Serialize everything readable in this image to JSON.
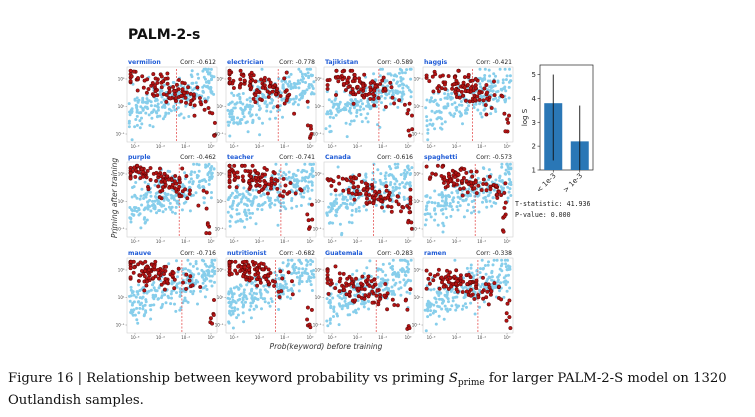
{
  "figure": {
    "title": "PALM-2-s",
    "xlabel": "Prob(keyword) before training",
    "ylabel": "Priming after training",
    "caption_prefix": "Figure 16 | Relationship between keyword probability vs priming ",
    "caption_symbol": "S",
    "caption_subscript": "prime",
    "caption_suffix": " for larger PALM-2-S model on 1320 Outlandish samples."
  },
  "chart_data": [
    {
      "type": "scatter",
      "panels": [
        {
          "keyword": "vermilion",
          "corr": "Corr: -0.612"
        },
        {
          "keyword": "electrician",
          "corr": "Corr: -0.778"
        },
        {
          "keyword": "Tajikistan",
          "corr": "Corr: -0.589"
        },
        {
          "keyword": "haggis",
          "corr": "Corr: -0.421"
        },
        {
          "keyword": "purple",
          "corr": "Corr: -0.462"
        },
        {
          "keyword": "teacher",
          "corr": "Corr: -0.741"
        },
        {
          "keyword": "Canada",
          "corr": "Corr: -0.616"
        },
        {
          "keyword": "spaghetti",
          "corr": "Corr: -0.573"
        },
        {
          "keyword": "mauve",
          "corr": "Corr: -0.716"
        },
        {
          "keyword": "nutritionist",
          "corr": "Corr: -0.682"
        },
        {
          "keyword": "Guatemala",
          "corr": "Corr: -0.283"
        },
        {
          "keyword": "ramen",
          "corr": "Corr: -0.338"
        }
      ],
      "xscale": "log",
      "yscale": "log",
      "x_ticks": [
        "10⁻⁶",
        "10⁻⁴",
        "10⁻²",
        "10⁰"
      ],
      "y_ticks": [
        "10⁻¹",
        "10¹",
        "10³"
      ],
      "threshold": 0.001,
      "colors": {
        "background_points": "#87ceeb",
        "sample_points": "#b31313",
        "sample_edge": "#300000",
        "threshold_line": "#e23b3b"
      }
    },
    {
      "type": "bar",
      "categories": [
        "< 1e-3",
        "> 1e-3"
      ],
      "values": [
        3.8,
        2.2
      ],
      "error_low": [
        1.4,
        0.8
      ],
      "error_high": [
        5.0,
        3.7
      ],
      "ylabel": "log S",
      "ylim": [
        1,
        5.4
      ],
      "y_ticks": [
        1,
        2,
        3,
        4,
        5
      ],
      "color": "#2a77b6",
      "stats": [
        "T-statistic: 41.936",
        "P-value: 0.000"
      ]
    }
  ]
}
